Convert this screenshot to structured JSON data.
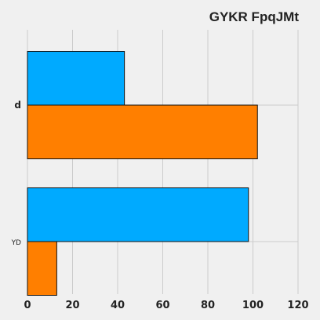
{
  "chart_data": {
    "type": "bar",
    "orientation": "horizontal",
    "title": "GYKR FpqJMt",
    "categories": [
      "d",
      "YD"
    ],
    "series": [
      {
        "values": [
          43,
          98
        ],
        "color": "#00aaff"
      },
      {
        "values": [
          102,
          13
        ],
        "color": "#ff7f00"
      }
    ],
    "xlim": [
      0,
      120
    ],
    "xticks": [
      "0",
      "20",
      "40",
      "60",
      "80",
      "100",
      "120"
    ],
    "grid": true,
    "legend": "none",
    "background": "#f0f0f0"
  }
}
